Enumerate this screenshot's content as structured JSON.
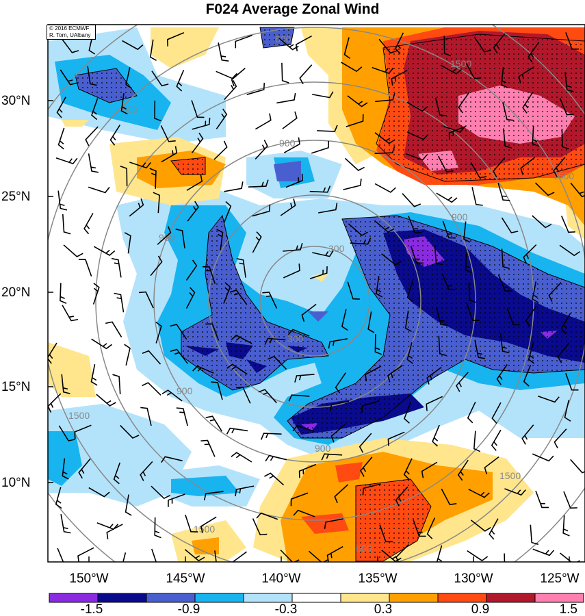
{
  "title": "F024 Average Zonal Wind",
  "credit": {
    "line1": "© 2016 ECMWF",
    "line2": "R. Torn, UAlbany"
  },
  "lat_labels": [
    "30°N",
    "25°N",
    "20°N",
    "15°N",
    "10°N"
  ],
  "lon_labels": [
    "150°W",
    "145°W",
    "140°W",
    "135°W",
    "130°W",
    "125°W"
  ],
  "colorbar": {
    "colors": [
      "#8a2be2",
      "#0a0a8c",
      "#4a5fcf",
      "#18b4f0",
      "#b3e3fb",
      "#ffffff",
      "#ffe68c",
      "#ffa000",
      "#ff4a12",
      "#b2182b",
      "#ff80b0"
    ],
    "labels": [
      "-1.5",
      "-0.9",
      "-0.3",
      "0.3",
      "0.9",
      "1.5"
    ]
  },
  "height_contour_labels": [
    "900",
    "900",
    "900",
    "900",
    "900",
    "1500",
    "1500",
    "1500",
    "1500",
    "1500",
    "300",
    "300",
    "600",
    "600",
    "600"
  ],
  "colors": {
    "background": "#ffffff",
    "contour": "#888888"
  }
}
